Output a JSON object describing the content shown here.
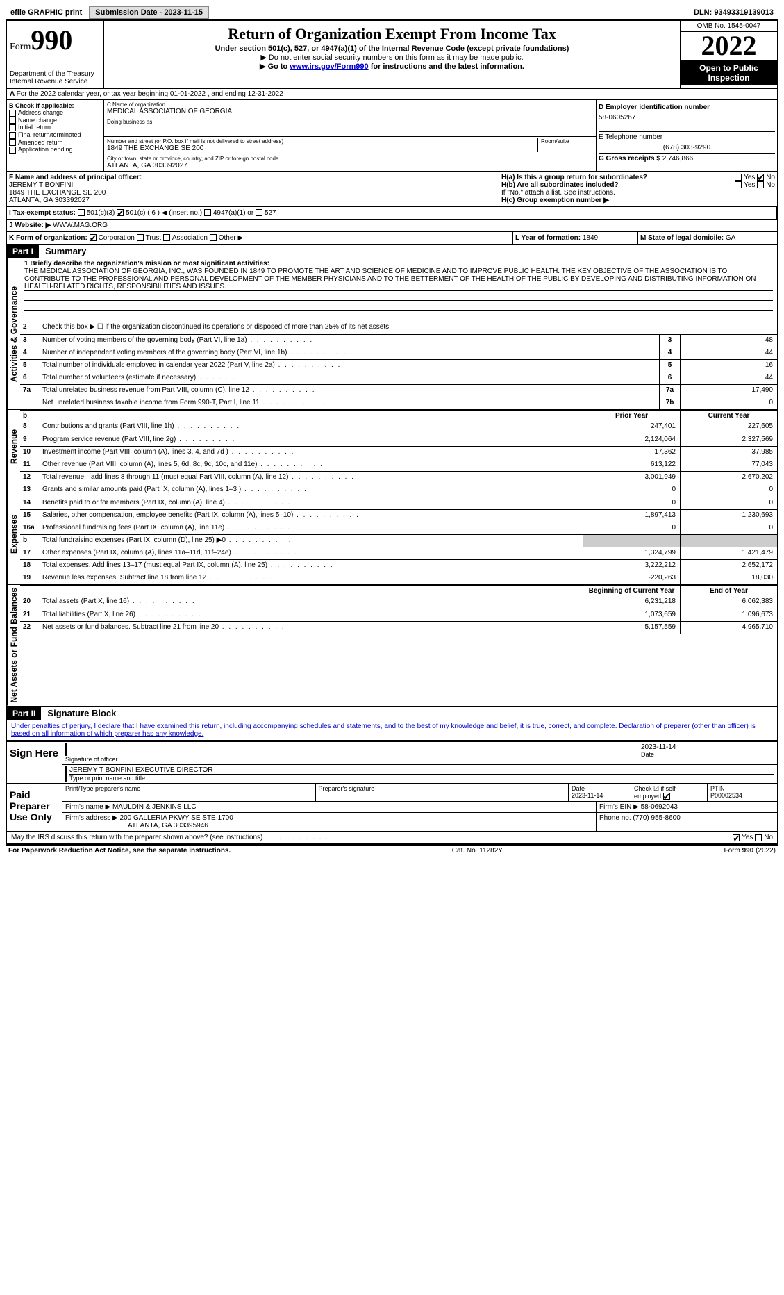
{
  "topbar": {
    "efile": "efile GRAPHIC print",
    "submission_label": "Submission Date - 2023-11-15",
    "dln": "DLN: 93493319139013"
  },
  "header": {
    "form_word": "Form",
    "form_num": "990",
    "dept": "Department of the Treasury",
    "irs": "Internal Revenue Service",
    "title": "Return of Organization Exempt From Income Tax",
    "sub": "Under section 501(c), 527, or 4947(a)(1) of the Internal Revenue Code (except private foundations)",
    "line1": "Do not enter social security numbers on this form as it may be made public.",
    "line2_pre": "Go to ",
    "line2_link": "www.irs.gov/Form990",
    "line2_post": " for instructions and the latest information.",
    "omb": "OMB No. 1545-0047",
    "year": "2022",
    "inspection": "Open to Public Inspection"
  },
  "A": {
    "text": "For the 2022 calendar year, or tax year beginning 01-01-2022   , and ending 12-31-2022"
  },
  "B": {
    "label": "B Check if applicable:",
    "items": [
      "Address change",
      "Name change",
      "Initial return",
      "Final return/terminated",
      "Amended return",
      "Application pending"
    ]
  },
  "C": {
    "name_label": "C Name of organization",
    "name": "MEDICAL ASSOCIATION OF GEORGIA",
    "dba_label": "Doing business as",
    "dba": "",
    "street_label": "Number and street (or P.O. box if mail is not delivered to street address)",
    "room_label": "Room/suite",
    "street": "1849 THE EXCHANGE SE 200",
    "city_label": "City or town, state or province, country, and ZIP or foreign postal code",
    "city": "ATLANTA, GA  303392027"
  },
  "D": {
    "label": "D Employer identification number",
    "val": "58-0605267"
  },
  "E": {
    "label": "E Telephone number",
    "val": "(678) 303-9290"
  },
  "G": {
    "label": "G Gross receipts $",
    "val": "2,746,866"
  },
  "F": {
    "label": "F  Name and address of principal officer:",
    "name": "JEREMY T BONFINI",
    "street": "1849 THE EXCHANGE SE 200",
    "city": "ATLANTA, GA  303392027"
  },
  "H": {
    "a": "H(a)  Is this a group return for subordinates?",
    "b": "H(b)  Are all subordinates included?",
    "b_note": "If \"No,\" attach a list. See instructions.",
    "c": "H(c)  Group exemption number ▶",
    "yes": "Yes",
    "no": "No"
  },
  "I": {
    "label": "I   Tax-exempt status:",
    "opts": [
      "501(c)(3)",
      "501(c) ( 6 ) ◀ (insert no.)",
      "4947(a)(1) or",
      "527"
    ]
  },
  "J": {
    "label": "J   Website: ▶",
    "val": "WWW.MAG.ORG"
  },
  "K": {
    "label": "K Form of organization:",
    "opts": [
      "Corporation",
      "Trust",
      "Association",
      "Other ▶"
    ]
  },
  "L": {
    "label": "L Year of formation:",
    "val": "1849"
  },
  "M": {
    "label": "M State of legal domicile:",
    "val": "GA"
  },
  "part1": {
    "num": "Part I",
    "title": "Summary"
  },
  "tabs": {
    "act": "Activities & Governance",
    "rev": "Revenue",
    "exp": "Expenses",
    "net": "Net Assets or Fund Balances"
  },
  "mission": {
    "label": "1  Briefly describe the organization's mission or most significant activities:",
    "text": "THE MEDICAL ASSOCIATION OF GEORGIA, INC., WAS FOUNDED IN 1849 TO PROMOTE THE ART AND SCIENCE OF MEDICINE AND TO IMPROVE PUBLIC HEALTH. THE KEY OBJECTIVE OF THE ASSOCIATION IS TO CONTRIBUTE TO THE PROFESSIONAL AND PERSONAL DEVELOPMENT OF THE MEMBER PHYSICIANS AND TO THE BETTERMENT OF THE HEALTH OF THE PUBLIC BY DEVELOPING AND DISTRIBUTING INFORMATION ON HEALTH-RELATED RIGHTS, RESPONSIBILITIES AND ISSUES."
  },
  "lines_gov": [
    {
      "n": "2",
      "d": "Check this box ▶ ☐  if the organization discontinued its operations or disposed of more than 25% of its net assets."
    },
    {
      "n": "3",
      "d": "Number of voting members of the governing body (Part VI, line 1a)",
      "box": "3",
      "v": "48"
    },
    {
      "n": "4",
      "d": "Number of independent voting members of the governing body (Part VI, line 1b)",
      "box": "4",
      "v": "44"
    },
    {
      "n": "5",
      "d": "Total number of individuals employed in calendar year 2022 (Part V, line 2a)",
      "box": "5",
      "v": "16"
    },
    {
      "n": "6",
      "d": "Total number of volunteers (estimate if necessary)",
      "box": "6",
      "v": "44"
    },
    {
      "n": "7a",
      "d": "Total unrelated business revenue from Part VIII, column (C), line 12",
      "box": "7a",
      "v": "17,490"
    },
    {
      "n": "",
      "d": "Net unrelated business taxable income from Form 990-T, Part I, line 11",
      "box": "7b",
      "v": "0"
    }
  ],
  "col_hdr": {
    "b": "b",
    "prior": "Prior Year",
    "current": "Current Year"
  },
  "lines_rev": [
    {
      "n": "8",
      "d": "Contributions and grants (Part VIII, line 1h)",
      "p": "247,401",
      "c": "227,605"
    },
    {
      "n": "9",
      "d": "Program service revenue (Part VIII, line 2g)",
      "p": "2,124,064",
      "c": "2,327,569"
    },
    {
      "n": "10",
      "d": "Investment income (Part VIII, column (A), lines 3, 4, and 7d )",
      "p": "17,362",
      "c": "37,985"
    },
    {
      "n": "11",
      "d": "Other revenue (Part VIII, column (A), lines 5, 6d, 8c, 9c, 10c, and 11e)",
      "p": "613,122",
      "c": "77,043"
    },
    {
      "n": "12",
      "d": "Total revenue—add lines 8 through 11 (must equal Part VIII, column (A), line 12)",
      "p": "3,001,949",
      "c": "2,670,202"
    }
  ],
  "lines_exp": [
    {
      "n": "13",
      "d": "Grants and similar amounts paid (Part IX, column (A), lines 1–3 )",
      "p": "0",
      "c": "0"
    },
    {
      "n": "14",
      "d": "Benefits paid to or for members (Part IX, column (A), line 4)",
      "p": "0",
      "c": "0"
    },
    {
      "n": "15",
      "d": "Salaries, other compensation, employee benefits (Part IX, column (A), lines 5–10)",
      "p": "1,897,413",
      "c": "1,230,693"
    },
    {
      "n": "16a",
      "d": "Professional fundraising fees (Part IX, column (A), line 11e)",
      "p": "0",
      "c": "0"
    },
    {
      "n": "b",
      "d": "Total fundraising expenses (Part IX, column (D), line 25) ▶0",
      "p": "",
      "c": "",
      "shade": true
    },
    {
      "n": "17",
      "d": "Other expenses (Part IX, column (A), lines 11a–11d, 11f–24e)",
      "p": "1,324,799",
      "c": "1,421,479"
    },
    {
      "n": "18",
      "d": "Total expenses. Add lines 13–17 (must equal Part IX, column (A), line 25)",
      "p": "3,222,212",
      "c": "2,652,172"
    },
    {
      "n": "19",
      "d": "Revenue less expenses. Subtract line 18 from line 12",
      "p": "-220,263",
      "c": "18,030"
    }
  ],
  "net_hdr": {
    "begin": "Beginning of Current Year",
    "end": "End of Year"
  },
  "lines_net": [
    {
      "n": "20",
      "d": "Total assets (Part X, line 16)",
      "p": "6,231,218",
      "c": "6,062,383"
    },
    {
      "n": "21",
      "d": "Total liabilities (Part X, line 26)",
      "p": "1,073,659",
      "c": "1,096,673"
    },
    {
      "n": "22",
      "d": "Net assets or fund balances. Subtract line 21 from line 20",
      "p": "5,157,559",
      "c": "4,965,710"
    }
  ],
  "part2": {
    "num": "Part II",
    "title": "Signature Block"
  },
  "perjury": "Under penalties of perjury, I declare that I have examined this return, including accompanying schedules and statements, and to the best of my knowledge and belief, it is true, correct, and complete. Declaration of preparer (other than officer) is based on all information of which preparer has any knowledge.",
  "sign": {
    "here": "Sign Here",
    "sig_label": "Signature of officer",
    "date": "2023-11-14",
    "date_label": "Date",
    "name": "JEREMY T BONFINI  EXECUTIVE DIRECTOR",
    "name_label": "Type or print name and title"
  },
  "paid": {
    "label": "Paid Preparer Use Only",
    "prep_name_label": "Print/Type preparer's name",
    "prep_sig_label": "Preparer's signature",
    "date_label": "Date",
    "date": "2023-11-14",
    "check_label": "Check ☑ if self-employed",
    "ptin_label": "PTIN",
    "ptin": "P00002534",
    "firm_name_label": "Firm's name   ▶",
    "firm_name": "MAULDIN & JENKINS LLC",
    "firm_ein_label": "Firm's EIN ▶",
    "firm_ein": "58-0692043",
    "firm_addr_label": "Firm's address ▶",
    "firm_addr1": "200 GALLERIA PKWY SE STE 1700",
    "firm_addr2": "ATLANTA, GA  303395946",
    "phone_label": "Phone no.",
    "phone": "(770) 955-8600"
  },
  "discuss": {
    "q": "May the IRS discuss this return with the preparer shown above? (see instructions)",
    "yes": "Yes",
    "no": "No"
  },
  "footer": {
    "left": "For Paperwork Reduction Act Notice, see the separate instructions.",
    "mid": "Cat. No. 11282Y",
    "right": "Form 990 (2022)"
  }
}
